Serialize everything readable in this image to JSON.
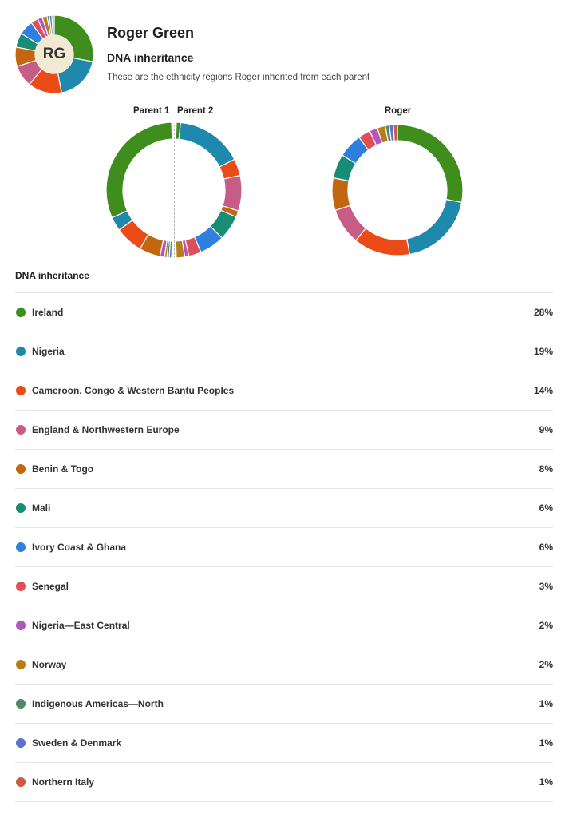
{
  "profile": {
    "name": "Roger Green",
    "initials": "RG",
    "section_title": "DNA inheritance",
    "description": "These are the ethnicity regions Roger inherited from each parent"
  },
  "charts": {
    "parent1_label": "Parent 1",
    "parent2_label": "Parent 2",
    "child_label": "Roger"
  },
  "list": {
    "title": "DNA inheritance",
    "regions": [
      {
        "name": "Ireland",
        "percent": "28%",
        "color": "#3f8d1d"
      },
      {
        "name": "Nigeria",
        "percent": "19%",
        "color": "#1e88ad"
      },
      {
        "name": "Cameroon, Congo & Western Bantu Peoples",
        "percent": "14%",
        "color": "#ea4b17"
      },
      {
        "name": "England & Northwestern Europe",
        "percent": "9%",
        "color": "#c75d86"
      },
      {
        "name": "Benin & Togo",
        "percent": "8%",
        "color": "#c2660f"
      },
      {
        "name": "Mali",
        "percent": "6%",
        "color": "#178c76"
      },
      {
        "name": "Ivory Coast & Ghana",
        "percent": "6%",
        "color": "#2f7fe0"
      },
      {
        "name": "Senegal",
        "percent": "3%",
        "color": "#df4f57"
      },
      {
        "name": "Nigeria—East Central",
        "percent": "2%",
        "color": "#b356c0"
      },
      {
        "name": "Norway",
        "percent": "2%",
        "color": "#b97d17"
      },
      {
        "name": "Indigenous Americas—North",
        "percent": "1%",
        "color": "#4f8a66"
      },
      {
        "name": "Sweden & Denmark",
        "percent": "1%",
        "color": "#5d6fd3"
      },
      {
        "name": "Northern Italy",
        "percent": "1%",
        "color": "#cd5a45"
      }
    ]
  },
  "chart_data": [
    {
      "type": "pie",
      "title": "Parent 1",
      "categories": [
        "Ireland",
        "Nigeria",
        "Cameroon, Congo & Western Bantu Peoples",
        "Benin & Togo",
        "Nigeria—East Central",
        "Norway",
        "Indigenous Americas—North",
        "Sweden & Denmark"
      ],
      "values": [
        56,
        6,
        12,
        9,
        2,
        1,
        1,
        1
      ]
    },
    {
      "type": "pie",
      "title": "Parent 2",
      "categories": [
        "Ireland",
        "Nigeria",
        "Cameroon, Congo & Western Bantu Peoples",
        "England & Northwestern Europe",
        "Benin & Togo",
        "Mali",
        "Ivory Coast & Ghana",
        "Senegal",
        "Nigeria—East Central",
        "Norway"
      ],
      "values": [
        2,
        32,
        8,
        17,
        3,
        12,
        12,
        6,
        2,
        4
      ]
    },
    {
      "type": "pie",
      "title": "Roger",
      "categories": [
        "Ireland",
        "Nigeria",
        "Cameroon, Congo & Western Bantu Peoples",
        "England & Northwestern Europe",
        "Benin & Togo",
        "Mali",
        "Ivory Coast & Ghana",
        "Senegal",
        "Nigeria—East Central",
        "Norway",
        "Indigenous Americas—North",
        "Sweden & Denmark",
        "Northern Italy"
      ],
      "values": [
        28,
        19,
        14,
        9,
        8,
        6,
        6,
        3,
        2,
        2,
        1,
        1,
        1
      ]
    }
  ]
}
